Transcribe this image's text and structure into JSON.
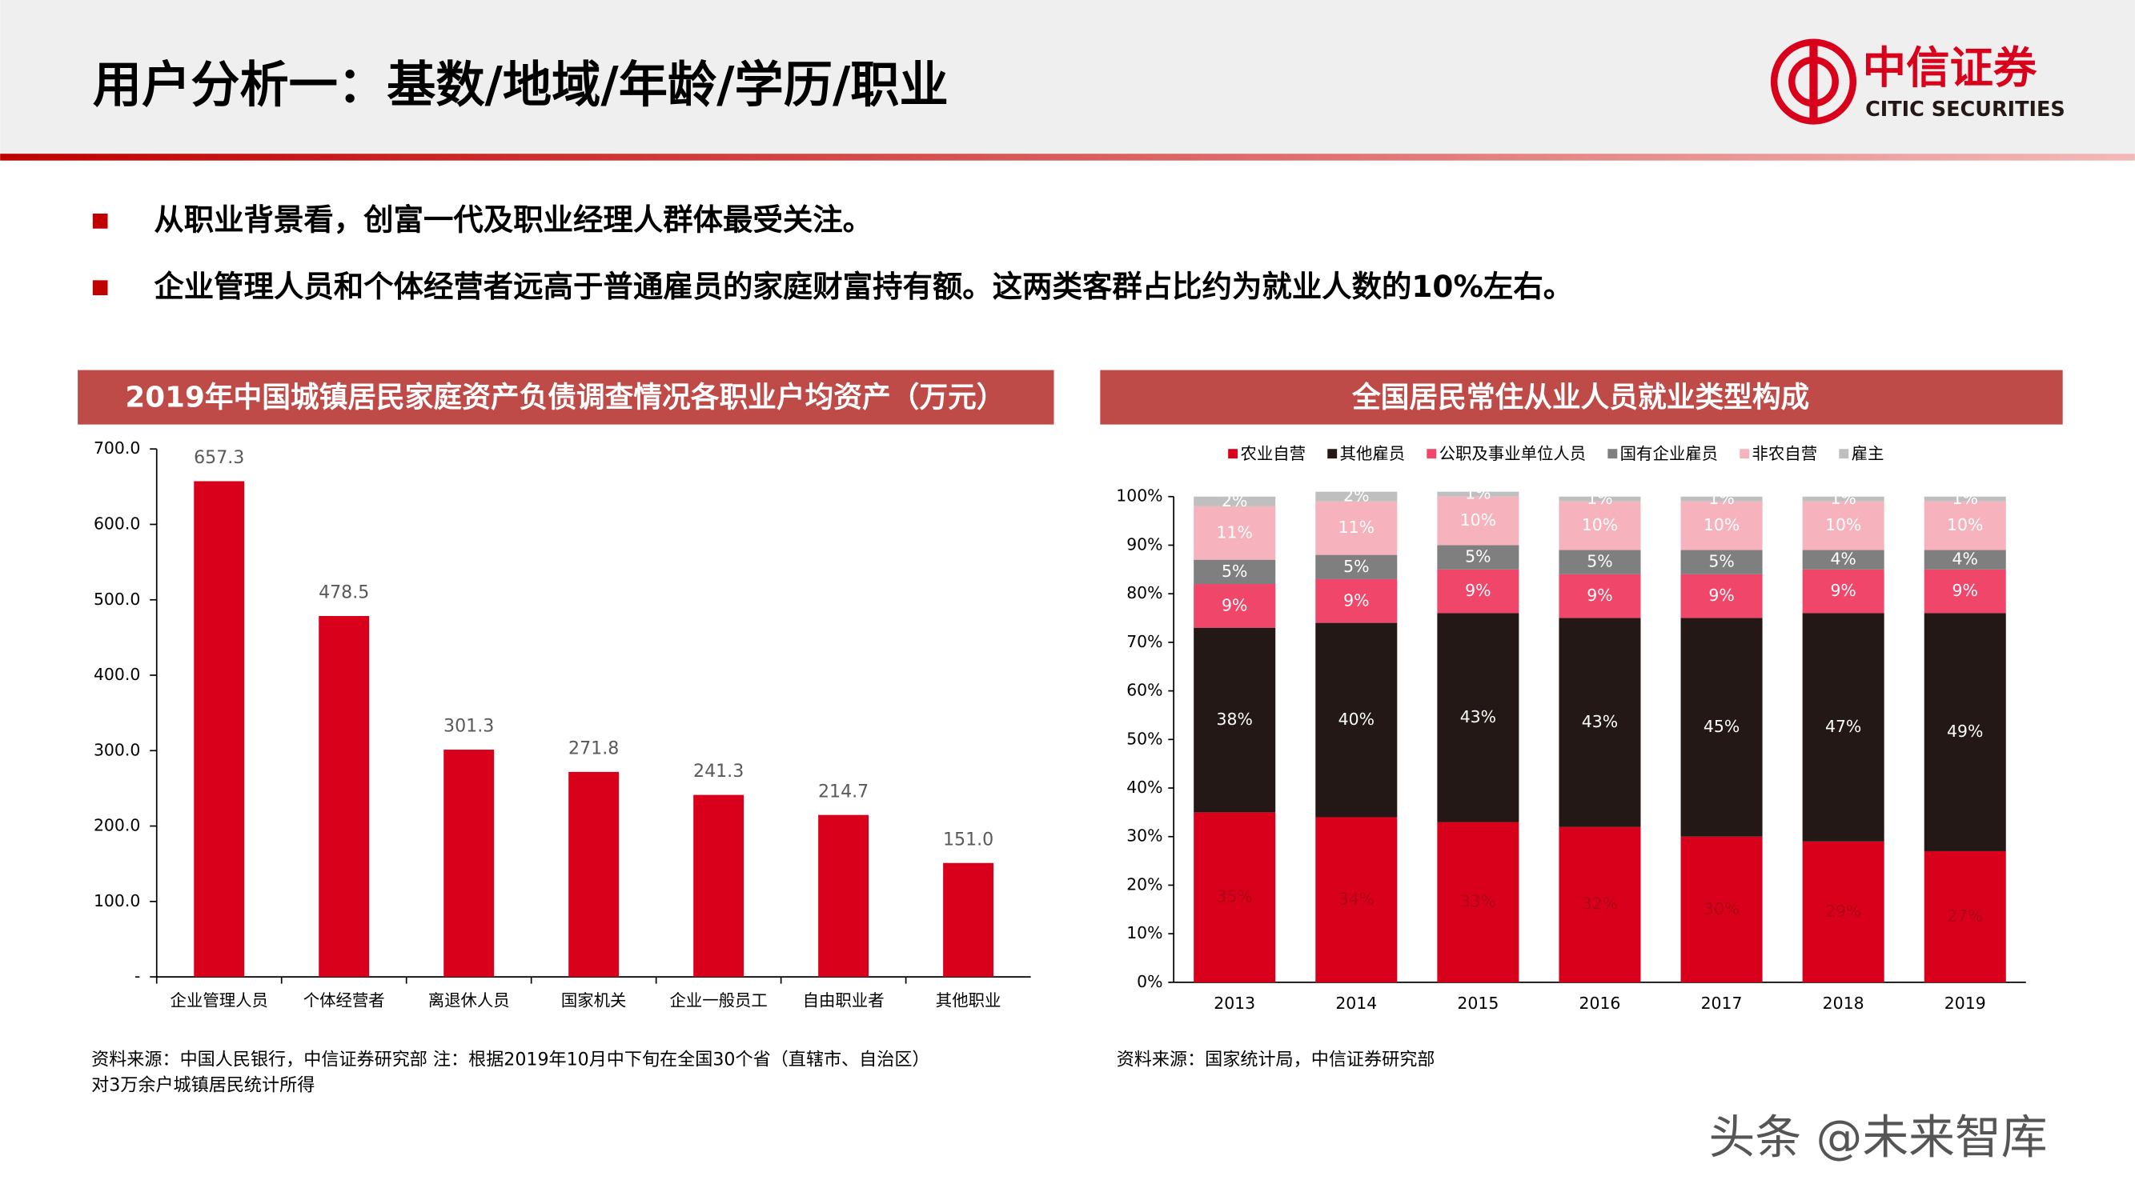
{
  "header": {
    "title": "用户分析一：基数/地域/年龄/学历/职业",
    "logo_cn": "中信证券",
    "logo_en": "CITIC SECURITIES"
  },
  "bullets": [
    "从职业背景看，创富一代及职业经理人群体最受关注。",
    "企业管理人员和个体经营者远高于普通雇员的家庭财富持有额。这两类客群占比约为就业人数的10%左右。"
  ],
  "sources": [
    "资料来源：中国人民银行，中信证券研究部  注：根据2019年10月中下旬在全国30个省（直辖市、自治区）",
    "对3万余户城镇居民统计所得",
    "资料来源：国家统计局，中信证券研究部"
  ],
  "watermark": "头条 @未来智库",
  "chart_data": [
    {
      "type": "bar",
      "title": "2019年中国城镇居民家庭资产负债调查情况各职业户均资产（万元）",
      "categories": [
        "企业管理人员",
        "个体经营者",
        "离退休人员",
        "国家机关",
        "企业一般员工",
        "自由职业者",
        "其他职业"
      ],
      "values": [
        657.3,
        478.5,
        301.3,
        271.8,
        241.3,
        214.7,
        151.0
      ],
      "value_labels": [
        "657.3",
        "478.5",
        "301.3",
        "271.8",
        "241.3",
        "214.7",
        "151.0"
      ],
      "color": "#d9001b",
      "ylim": [
        0,
        700
      ],
      "yticks": [
        {
          "value": 0,
          "label": "-"
        },
        {
          "value": 100,
          "label": "100.0"
        },
        {
          "value": 200,
          "label": "200.0"
        },
        {
          "value": 300,
          "label": "300.0"
        },
        {
          "value": 400,
          "label": "400.0"
        },
        {
          "value": 500,
          "label": "500.0"
        },
        {
          "value": 600,
          "label": "600.0"
        },
        {
          "value": 700,
          "label": "700.0"
        }
      ]
    },
    {
      "type": "stacked_bar",
      "title": "全国居民常住从业人员就业类型构成",
      "categories": [
        "2013",
        "2014",
        "2015",
        "2016",
        "2017",
        "2018",
        "2019"
      ],
      "series": [
        {
          "name": "农业自营",
          "color": "#d9001b",
          "label_color": "#b00015",
          "values": [
            35,
            34,
            33,
            32,
            30,
            29,
            27
          ],
          "value_labels": [
            "35%",
            "34%",
            "33%",
            "32%",
            "30%",
            "29%",
            "27%"
          ]
        },
        {
          "name": "其他雇员",
          "color": "#231815",
          "label_color": "#ffffff",
          "values": [
            38,
            40,
            43,
            43,
            45,
            47,
            49
          ],
          "value_labels": [
            "38%",
            "40%",
            "43%",
            "43%",
            "45%",
            "47%",
            "49%"
          ]
        },
        {
          "name": "公职及事业单位人员",
          "color": "#f0466a",
          "label_color": "#ffffff",
          "values": [
            9,
            9,
            9,
            9,
            9,
            9,
            9
          ],
          "value_labels": [
            "9%",
            "9%",
            "9%",
            "9%",
            "9%",
            "9%",
            "9%"
          ]
        },
        {
          "name": "国有企业雇员",
          "color": "#7f7f7f",
          "label_color": "#ffffff",
          "values": [
            5,
            5,
            5,
            5,
            5,
            4,
            4
          ],
          "value_labels": [
            "5%",
            "5%",
            "5%",
            "5%",
            "5%",
            "4%",
            "4%"
          ]
        },
        {
          "name": "非农自营",
          "color": "#f7b3bd",
          "label_color": "#ffffff",
          "values": [
            11,
            11,
            10,
            10,
            10,
            10,
            10
          ],
          "value_labels": [
            "11%",
            "11%",
            "10%",
            "10%",
            "10%",
            "10%",
            "10%"
          ]
        },
        {
          "name": "雇主",
          "color": "#bfbfbf",
          "label_color": "#ffffff",
          "values": [
            2,
            2,
            1,
            1,
            1,
            1,
            1
          ],
          "value_labels": [
            "2%",
            "2%",
            "1%",
            "1%",
            "1%",
            "1%",
            "1%"
          ]
        }
      ],
      "ylim": [
        0,
        100
      ],
      "yticks": [
        {
          "value": 0,
          "label": "0%"
        },
        {
          "value": 10,
          "label": "10%"
        },
        {
          "value": 20,
          "label": "20%"
        },
        {
          "value": 30,
          "label": "30%"
        },
        {
          "value": 40,
          "label": "40%"
        },
        {
          "value": 50,
          "label": "50%"
        },
        {
          "value": 60,
          "label": "60%"
        },
        {
          "value": 70,
          "label": "70%"
        },
        {
          "value": 80,
          "label": "80%"
        },
        {
          "value": 90,
          "label": "90%"
        },
        {
          "value": 100,
          "label": "100%"
        }
      ]
    }
  ]
}
